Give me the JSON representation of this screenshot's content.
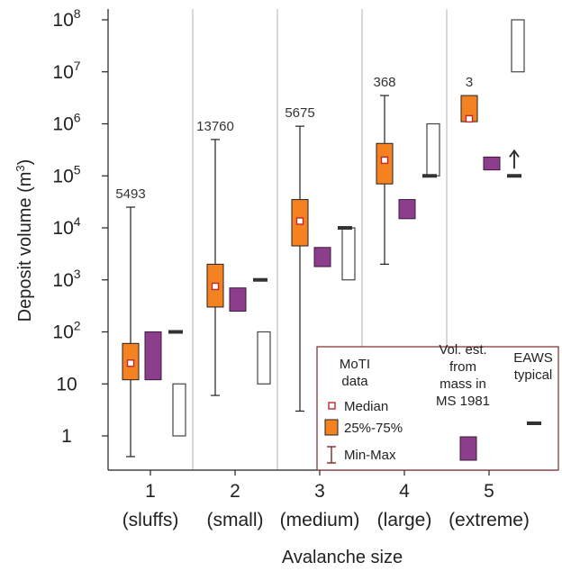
{
  "chart_data": {
    "type": "boxplot",
    "xlabel": "Avalanche size",
    "ylabel": "Deposit volume (m3)",
    "y_scale": "log",
    "ylim": [
      0.3,
      200000000
    ],
    "y_ticks": [
      {
        "value": 1,
        "label": "1",
        "exp": ""
      },
      {
        "value": 10,
        "label": "10",
        "exp": ""
      },
      {
        "value": 100,
        "label": "10",
        "exp": "2"
      },
      {
        "value": 1000,
        "label": "10",
        "exp": "3"
      },
      {
        "value": 10000,
        "label": "10",
        "exp": "4"
      },
      {
        "value": 100000,
        "label": "10",
        "exp": "5"
      },
      {
        "value": 1000000,
        "label": "10",
        "exp": "6"
      },
      {
        "value": 10000000,
        "label": "10",
        "exp": "7"
      },
      {
        "value": 100000000,
        "label": "10",
        "exp": "8"
      }
    ],
    "categories": [
      {
        "size": "1",
        "name": "(sluffs)"
      },
      {
        "size": "2",
        "name": "(small)"
      },
      {
        "size": "3",
        "name": "(medium)"
      },
      {
        "size": "4",
        "name": "(large)"
      },
      {
        "size": "5",
        "name": "(extreme)"
      }
    ],
    "moti": [
      {
        "count": "5493",
        "min": 0.4,
        "q1": 12,
        "median": 25,
        "q3": 60,
        "max": 25000
      },
      {
        "count": "13760",
        "min": 6,
        "q1": 300,
        "median": 750,
        "q3": 2000,
        "max": 500000
      },
      {
        "count": "5675",
        "min": 3,
        "q1": 4500,
        "median": 13500,
        "q3": 35000,
        "max": 900000
      },
      {
        "count": "368",
        "min": 2000,
        "q1": 70000,
        "median": 200000,
        "q3": 420000,
        "max": 3500000
      },
      {
        "count": "3",
        "min": null,
        "q1": 1100000,
        "median": 1250000,
        "q3": 3500000,
        "max": null
      }
    ],
    "ms1981": [
      {
        "low": 12,
        "high": 100
      },
      {
        "low": 250,
        "high": 700
      },
      {
        "low": 1800,
        "high": 4200
      },
      {
        "low": 15000,
        "high": 35000
      },
      {
        "low": 130000,
        "high": 230000
      }
    ],
    "eaws_typical": [
      100,
      1000,
      10000,
      100000,
      100000
    ],
    "eaws_open_ranges": [
      {
        "low": 1,
        "high": 10
      },
      {
        "low": 10,
        "high": 100
      },
      {
        "low": 1000,
        "high": 10000
      },
      {
        "low": 100000,
        "high": 1000000
      },
      {
        "low": 10000000,
        "high": 100000000
      }
    ],
    "eaws_arrow_on_size": 5,
    "colors": {
      "moti_box": "#f58220",
      "moti_median_fill": "#ffffff",
      "moti_median_stroke": "#c0282d",
      "ms_box": "#8c3e8c",
      "eaws_line": "#333333",
      "grid": "#bdbdbd",
      "legend_border": "#7a2a2a"
    },
    "legend": {
      "moti_title": [
        "MoTI",
        "data"
      ],
      "median": "Median",
      "iqr": "25%-75%",
      "minmax": "Min-Max",
      "ms_title": [
        "Vol. est.",
        "from",
        "mass in",
        "MS 1981"
      ],
      "eaws_title": [
        "EAWS",
        "typical"
      ]
    }
  }
}
